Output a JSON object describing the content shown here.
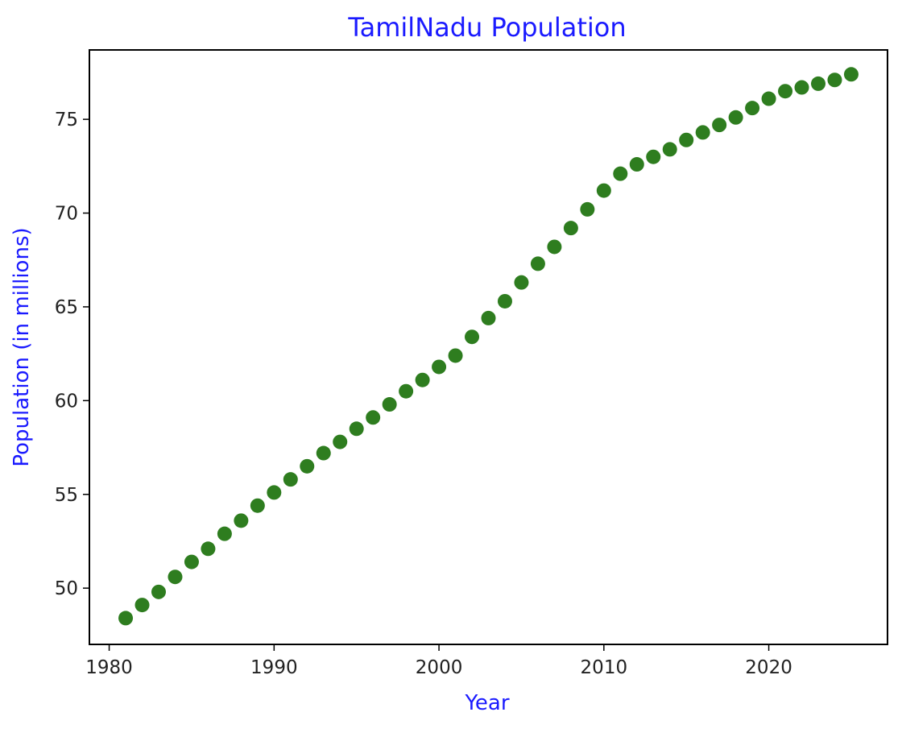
{
  "chart_data": {
    "type": "scatter",
    "title": "TamilNadu Population",
    "xlabel": "Year",
    "ylabel": "Population (in millions)",
    "xlim": [
      1978.8,
      2027.2
    ],
    "ylim": [
      47.0,
      78.7
    ],
    "xticks": [
      1980,
      1990,
      2000,
      2010,
      2020
    ],
    "yticks": [
      50,
      55,
      60,
      65,
      70,
      75
    ],
    "grid": false,
    "marker_color": "#2e7d1f",
    "label_color": "#1a1aff",
    "series": [
      {
        "x": [
          1981,
          1982,
          1983,
          1984,
          1985,
          1986,
          1987,
          1988,
          1989,
          1990,
          1991,
          1992,
          1993,
          1994,
          1995,
          1996,
          1997,
          1998,
          1999,
          2000,
          2001,
          2002,
          2003,
          2004,
          2005,
          2006,
          2007,
          2008,
          2009,
          2010,
          2011,
          2012,
          2013,
          2014,
          2015,
          2016,
          2017,
          2018,
          2019,
          2020,
          2021,
          2022,
          2023,
          2024,
          2025
        ],
        "y": [
          48.4,
          49.1,
          49.8,
          50.6,
          51.4,
          52.1,
          52.9,
          53.6,
          54.4,
          55.1,
          55.8,
          56.5,
          57.2,
          57.8,
          58.5,
          59.1,
          59.8,
          60.5,
          61.1,
          61.8,
          62.4,
          63.4,
          64.4,
          65.3,
          66.3,
          67.3,
          68.2,
          69.2,
          70.2,
          71.2,
          72.1,
          72.6,
          73.0,
          73.4,
          73.9,
          74.3,
          74.7,
          75.1,
          75.6,
          76.1,
          76.5,
          76.7,
          76.9,
          77.1,
          77.4
        ]
      }
    ]
  }
}
